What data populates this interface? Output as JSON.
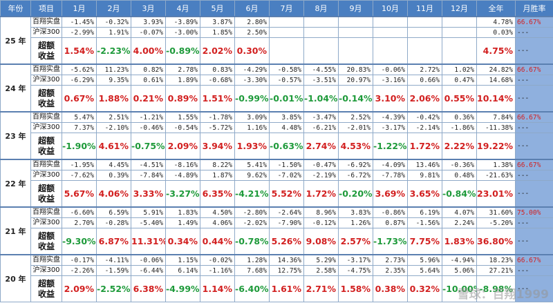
{
  "headers": [
    "年份",
    "项目",
    "1月",
    "2月",
    "3月",
    "4月",
    "5月",
    "6月",
    "7月",
    "8月",
    "9月",
    "10月",
    "11月",
    "12月",
    "全年",
    "月胜率"
  ],
  "labels": {
    "fund": "百翔实盘",
    "index": "沪深300",
    "excess": "超额收益"
  },
  "watermark": "雪球：百翔1999",
  "years": [
    {
      "year": "25 年",
      "fund": [
        "-1.45%",
        "-0.32%",
        "3.93%",
        "-3.89%",
        "3.87%",
        "2.80%",
        "",
        "",
        "",
        "",
        "",
        ""
      ],
      "fund_total": "4.78%",
      "index": [
        "-2.99%",
        "1.91%",
        "-0.07%",
        "-3.00%",
        "1.85%",
        "2.50%",
        "",
        "",
        "",
        "",
        "",
        ""
      ],
      "index_total": "0.03%",
      "excess": [
        "1.54%",
        "-2.23%",
        "4.00%",
        "-0.89%",
        "2.02%",
        "0.30%",
        "",
        "",
        "",
        "",
        "",
        ""
      ],
      "excess_total": "4.75%",
      "winrate": "66.67%",
      "wr2": "---",
      "wr3": "---"
    },
    {
      "year": "24 年",
      "fund": [
        "-5.62%",
        "11.23%",
        "0.82%",
        "2.78%",
        "0.83%",
        "-4.29%",
        "-0.58%",
        "-4.55%",
        "20.83%",
        "-0.06%",
        "2.72%",
        "1.02%"
      ],
      "fund_total": "24.82%",
      "index": [
        "-6.29%",
        "9.35%",
        "0.61%",
        "1.89%",
        "-0.68%",
        "-3.30%",
        "-0.57%",
        "-3.51%",
        "20.97%",
        "-3.16%",
        "0.66%",
        "0.47%"
      ],
      "index_total": "14.68%",
      "excess": [
        "0.67%",
        "1.88%",
        "0.21%",
        "0.89%",
        "1.51%",
        "-0.99%",
        "-0.01%",
        "-1.04%",
        "-0.14%",
        "3.10%",
        "2.06%",
        "0.55%"
      ],
      "excess_total": "10.14%",
      "winrate": "66.67%",
      "wr2": "---",
      "wr3": "---"
    },
    {
      "year": "23 年",
      "fund": [
        "5.47%",
        "2.51%",
        "-1.21%",
        "1.55%",
        "-1.78%",
        "3.09%",
        "3.85%",
        "-3.47%",
        "2.52%",
        "-4.39%",
        "-0.42%",
        "0.36%"
      ],
      "fund_total": "7.84%",
      "index": [
        "7.37%",
        "-2.10%",
        "-0.46%",
        "-0.54%",
        "-5.72%",
        "1.16%",
        "4.48%",
        "-6.21%",
        "-2.01%",
        "-3.17%",
        "-2.14%",
        "-1.86%"
      ],
      "index_total": "-11.38%",
      "excess": [
        "-1.90%",
        "4.61%",
        "-0.75%",
        "2.09%",
        "3.94%",
        "1.93%",
        "-0.63%",
        "2.74%",
        "4.53%",
        "-1.22%",
        "1.72%",
        "2.22%"
      ],
      "excess_total": "19.22%",
      "winrate": "66.67%",
      "wr2": "---",
      "wr3": "---"
    },
    {
      "year": "22 年",
      "fund": [
        "-1.95%",
        "4.45%",
        "-4.51%",
        "-8.16%",
        "8.22%",
        "5.41%",
        "-1.50%",
        "-0.47%",
        "-6.92%",
        "-4.09%",
        "13.46%",
        "-0.36%"
      ],
      "fund_total": "1.38%",
      "index": [
        "-7.62%",
        "0.39%",
        "-7.84%",
        "-4.89%",
        "1.87%",
        "9.62%",
        "-7.02%",
        "-2.19%",
        "-6.72%",
        "-7.78%",
        "9.81%",
        "0.48%"
      ],
      "index_total": "-21.63%",
      "excess": [
        "5.67%",
        "4.06%",
        "3.33%",
        "-3.27%",
        "6.35%",
        "-4.21%",
        "5.52%",
        "1.72%",
        "-0.20%",
        "3.69%",
        "3.65%",
        "-0.84%"
      ],
      "excess_total": "23.01%",
      "winrate": "66.67%",
      "wr2": "---",
      "wr3": "---"
    },
    {
      "year": "21 年",
      "fund": [
        "-6.60%",
        "6.59%",
        "5.91%",
        "1.83%",
        "4.50%",
        "-2.80%",
        "-2.64%",
        "8.96%",
        "3.83%",
        "-0.86%",
        "6.19%",
        "4.07%"
      ],
      "fund_total": "31.60%",
      "index": [
        "2.70%",
        "-0.28%",
        "-5.40%",
        "1.49%",
        "4.06%",
        "-2.02%",
        "-7.90%",
        "-0.12%",
        "1.26%",
        "0.87%",
        "-1.56%",
        "2.24%"
      ],
      "index_total": "-5.20%",
      "excess": [
        "-9.30%",
        "6.87%",
        "11.31%",
        "0.34%",
        "0.44%",
        "-0.78%",
        "5.26%",
        "9.08%",
        "2.57%",
        "-1.73%",
        "7.75%",
        "1.83%"
      ],
      "excess_total": "36.80%",
      "winrate": "75.00%",
      "wr2": "---",
      "wr3": "---"
    },
    {
      "year": "20 年",
      "fund": [
        "-0.17%",
        "-4.11%",
        "-0.06%",
        "1.15%",
        "-0.02%",
        "1.28%",
        "14.36%",
        "5.29%",
        "-3.17%",
        "2.73%",
        "5.96%",
        "-4.94%"
      ],
      "fund_total": "18.23%",
      "index": [
        "-2.26%",
        "-1.59%",
        "-6.44%",
        "6.14%",
        "-1.16%",
        "7.68%",
        "12.75%",
        "2.58%",
        "-4.75%",
        "2.35%",
        "5.64%",
        "5.06%"
      ],
      "index_total": "27.21%",
      "excess": [
        "2.09%",
        "-2.52%",
        "6.38%",
        "-4.99%",
        "1.14%",
        "-6.40%",
        "1.61%",
        "2.71%",
        "1.58%",
        "0.38%",
        "0.32%",
        "-10.00%"
      ],
      "excess_total": "-8.98%",
      "winrate": "66.67%",
      "wr2": "---",
      "wr3": "---"
    }
  ]
}
